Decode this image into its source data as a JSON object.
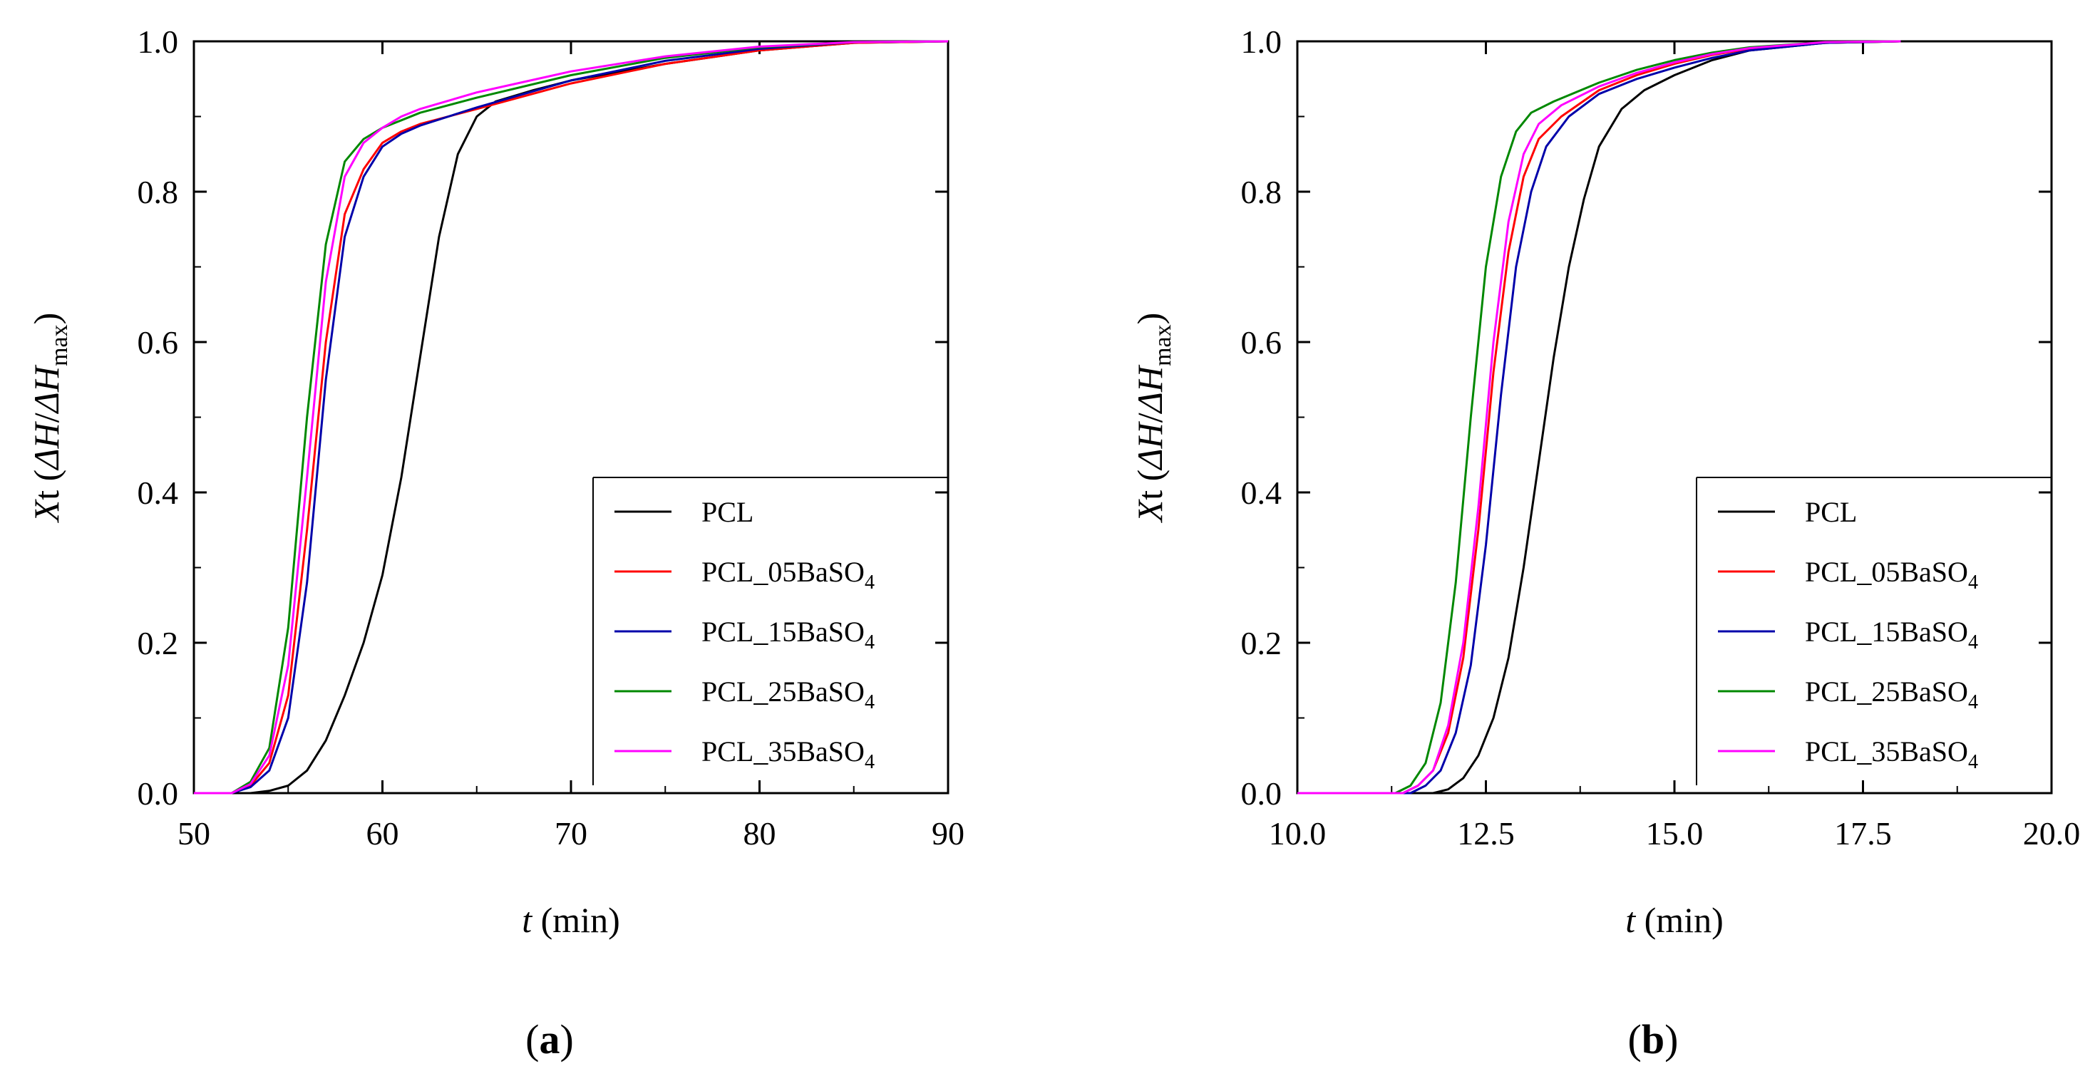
{
  "chart_data": [
    {
      "type": "line",
      "panel_label_parts": [
        "(",
        "a",
        ")"
      ],
      "xlabel_parts": [
        "t",
        " (min)"
      ],
      "ylabel_parts": [
        "X",
        "t (",
        "ΔH",
        "/",
        "ΔH",
        "max",
        ")"
      ],
      "xlim": [
        50,
        90
      ],
      "ylim": [
        0.0,
        1.0
      ],
      "xticks": [
        50,
        60,
        70,
        80,
        90
      ],
      "xtick_labels": [
        "50",
        "60",
        "70",
        "80",
        "90"
      ],
      "yticks": [
        0.0,
        0.2,
        0.4,
        0.6,
        0.8,
        1.0
      ],
      "ytick_labels": [
        "0.0",
        "0.2",
        "0.4",
        "0.6",
        "0.8",
        "1.0"
      ],
      "legend_position": "lower-right",
      "series": [
        {
          "name": "PCL",
          "label_parts": [
            "PCL",
            "",
            ""
          ],
          "color": "#000000",
          "x": [
            50,
            53,
            54,
            55,
            56,
            57,
            58,
            59,
            60,
            61,
            62,
            63,
            64,
            65,
            66,
            68,
            70,
            75,
            80,
            85,
            90
          ],
          "y": [
            0.0,
            0.0,
            0.003,
            0.01,
            0.03,
            0.07,
            0.13,
            0.2,
            0.29,
            0.42,
            0.58,
            0.74,
            0.85,
            0.9,
            0.92,
            0.935,
            0.948,
            0.97,
            0.988,
            0.998,
            1.0
          ]
        },
        {
          "name": "PCL_05BaSO4",
          "label_parts": [
            "PCL_05BaSO",
            "4",
            ""
          ],
          "color": "#ff0000",
          "x": [
            50,
            52,
            53,
            54,
            55,
            56,
            57,
            58,
            59,
            60,
            61,
            62,
            65,
            70,
            75,
            80,
            85,
            90
          ],
          "y": [
            0.0,
            0.0,
            0.01,
            0.04,
            0.13,
            0.35,
            0.6,
            0.77,
            0.83,
            0.865,
            0.88,
            0.89,
            0.91,
            0.944,
            0.97,
            0.988,
            0.998,
            1.0
          ]
        },
        {
          "name": "PCL_15BaSO4",
          "label_parts": [
            "PCL_15BaSO",
            "4",
            ""
          ],
          "color": "#0000aa",
          "x": [
            50,
            52,
            53,
            54,
            55,
            56,
            57,
            58,
            59,
            60,
            61,
            62,
            65,
            70,
            75,
            80,
            85,
            90
          ],
          "y": [
            0.0,
            0.0,
            0.008,
            0.03,
            0.1,
            0.28,
            0.55,
            0.74,
            0.82,
            0.86,
            0.877,
            0.888,
            0.912,
            0.948,
            0.974,
            0.99,
            0.999,
            1.0
          ]
        },
        {
          "name": "PCL_25BaSO4",
          "label_parts": [
            "PCL_25BaSO",
            "4",
            ""
          ],
          "color": "#008800",
          "x": [
            50,
            52,
            53,
            54,
            55,
            56,
            57,
            58,
            59,
            60,
            61,
            62,
            65,
            70,
            75,
            80,
            85,
            90
          ],
          "y": [
            0.0,
            0.0,
            0.015,
            0.06,
            0.22,
            0.5,
            0.73,
            0.84,
            0.87,
            0.885,
            0.895,
            0.905,
            0.925,
            0.955,
            0.978,
            0.992,
            0.999,
            1.0
          ]
        },
        {
          "name": "PCL_35BaSO4",
          "label_parts": [
            "PCL_35BaSO",
            "4",
            ""
          ],
          "color": "#ff00ff",
          "x": [
            50,
            52,
            53,
            54,
            55,
            56,
            57,
            58,
            59,
            60,
            61,
            62,
            65,
            70,
            75,
            80,
            85,
            90
          ],
          "y": [
            0.0,
            0.0,
            0.012,
            0.05,
            0.17,
            0.42,
            0.68,
            0.82,
            0.865,
            0.885,
            0.9,
            0.91,
            0.932,
            0.96,
            0.98,
            0.993,
            0.999,
            1.0
          ]
        }
      ]
    },
    {
      "type": "line",
      "panel_label_parts": [
        "(",
        "b",
        ")"
      ],
      "xlabel_parts": [
        "t",
        " (min)"
      ],
      "ylabel_parts": [
        "X",
        "t (",
        "ΔH",
        "/",
        "ΔH",
        "max",
        ")"
      ],
      "xlim": [
        10.0,
        20.0
      ],
      "ylim": [
        0.0,
        1.0
      ],
      "xticks": [
        10.0,
        12.5,
        15.0,
        17.5,
        20.0
      ],
      "xtick_labels": [
        "10.0",
        "12.5",
        "15.0",
        "17.5",
        "20.0"
      ],
      "yticks": [
        0.0,
        0.2,
        0.4,
        0.6,
        0.8,
        1.0
      ],
      "ytick_labels": [
        "0.0",
        "0.2",
        "0.4",
        "0.6",
        "0.8",
        "1.0"
      ],
      "legend_position": "lower-right",
      "series": [
        {
          "name": "PCL",
          "label_parts": [
            "PCL",
            "",
            ""
          ],
          "color": "#000000",
          "x": [
            10.0,
            11.8,
            12.0,
            12.2,
            12.4,
            12.6,
            12.8,
            13.0,
            13.2,
            13.4,
            13.6,
            13.8,
            14.0,
            14.3,
            14.6,
            15.0,
            15.5,
            16.0,
            17.0,
            18.0
          ],
          "y": [
            0.0,
            0.0,
            0.005,
            0.02,
            0.05,
            0.1,
            0.18,
            0.3,
            0.44,
            0.58,
            0.7,
            0.79,
            0.86,
            0.91,
            0.935,
            0.955,
            0.975,
            0.988,
            0.998,
            1.0
          ]
        },
        {
          "name": "PCL_05BaSO4",
          "label_parts": [
            "PCL_05BaSO",
            "4",
            ""
          ],
          "color": "#ff0000",
          "x": [
            10.0,
            11.4,
            11.6,
            11.8,
            12.0,
            12.2,
            12.4,
            12.6,
            12.8,
            13.0,
            13.2,
            13.5,
            14.0,
            14.5,
            15.0,
            15.5,
            16.0,
            17.0,
            18.0
          ],
          "y": [
            0.0,
            0.0,
            0.01,
            0.03,
            0.08,
            0.18,
            0.35,
            0.56,
            0.72,
            0.82,
            0.87,
            0.9,
            0.935,
            0.955,
            0.97,
            0.982,
            0.99,
            0.998,
            1.0
          ]
        },
        {
          "name": "PCL_15BaSO4",
          "label_parts": [
            "PCL_15BaSO",
            "4",
            ""
          ],
          "color": "#0000aa",
          "x": [
            10.0,
            11.5,
            11.7,
            11.9,
            12.1,
            12.3,
            12.5,
            12.7,
            12.9,
            13.1,
            13.3,
            13.6,
            14.0,
            14.5,
            15.0,
            15.5,
            16.0,
            17.0,
            18.0
          ],
          "y": [
            0.0,
            0.0,
            0.01,
            0.03,
            0.08,
            0.17,
            0.33,
            0.53,
            0.7,
            0.8,
            0.86,
            0.9,
            0.93,
            0.95,
            0.965,
            0.978,
            0.988,
            0.998,
            1.0
          ]
        },
        {
          "name": "PCL_25BaSO4",
          "label_parts": [
            "PCL_25BaSO",
            "4",
            ""
          ],
          "color": "#008800",
          "x": [
            10.0,
            11.3,
            11.5,
            11.7,
            11.9,
            12.1,
            12.3,
            12.5,
            12.7,
            12.9,
            13.1,
            13.4,
            14.0,
            14.5,
            15.0,
            15.5,
            16.0,
            17.0,
            18.0
          ],
          "y": [
            0.0,
            0.0,
            0.01,
            0.04,
            0.12,
            0.28,
            0.5,
            0.7,
            0.82,
            0.88,
            0.905,
            0.92,
            0.945,
            0.962,
            0.975,
            0.985,
            0.992,
            0.999,
            1.0
          ]
        },
        {
          "name": "PCL_35BaSO4",
          "label_parts": [
            "PCL_35BaSO",
            "4",
            ""
          ],
          "color": "#ff00ff",
          "x": [
            10.0,
            11.4,
            11.6,
            11.8,
            12.0,
            12.2,
            12.4,
            12.6,
            12.8,
            13.0,
            13.2,
            13.5,
            14.0,
            14.5,
            15.0,
            15.5,
            16.0,
            17.0,
            18.0
          ],
          "y": [
            0.0,
            0.0,
            0.01,
            0.03,
            0.09,
            0.2,
            0.38,
            0.6,
            0.76,
            0.85,
            0.89,
            0.915,
            0.94,
            0.958,
            0.972,
            0.983,
            0.991,
            0.999,
            1.0
          ]
        }
      ]
    }
  ]
}
